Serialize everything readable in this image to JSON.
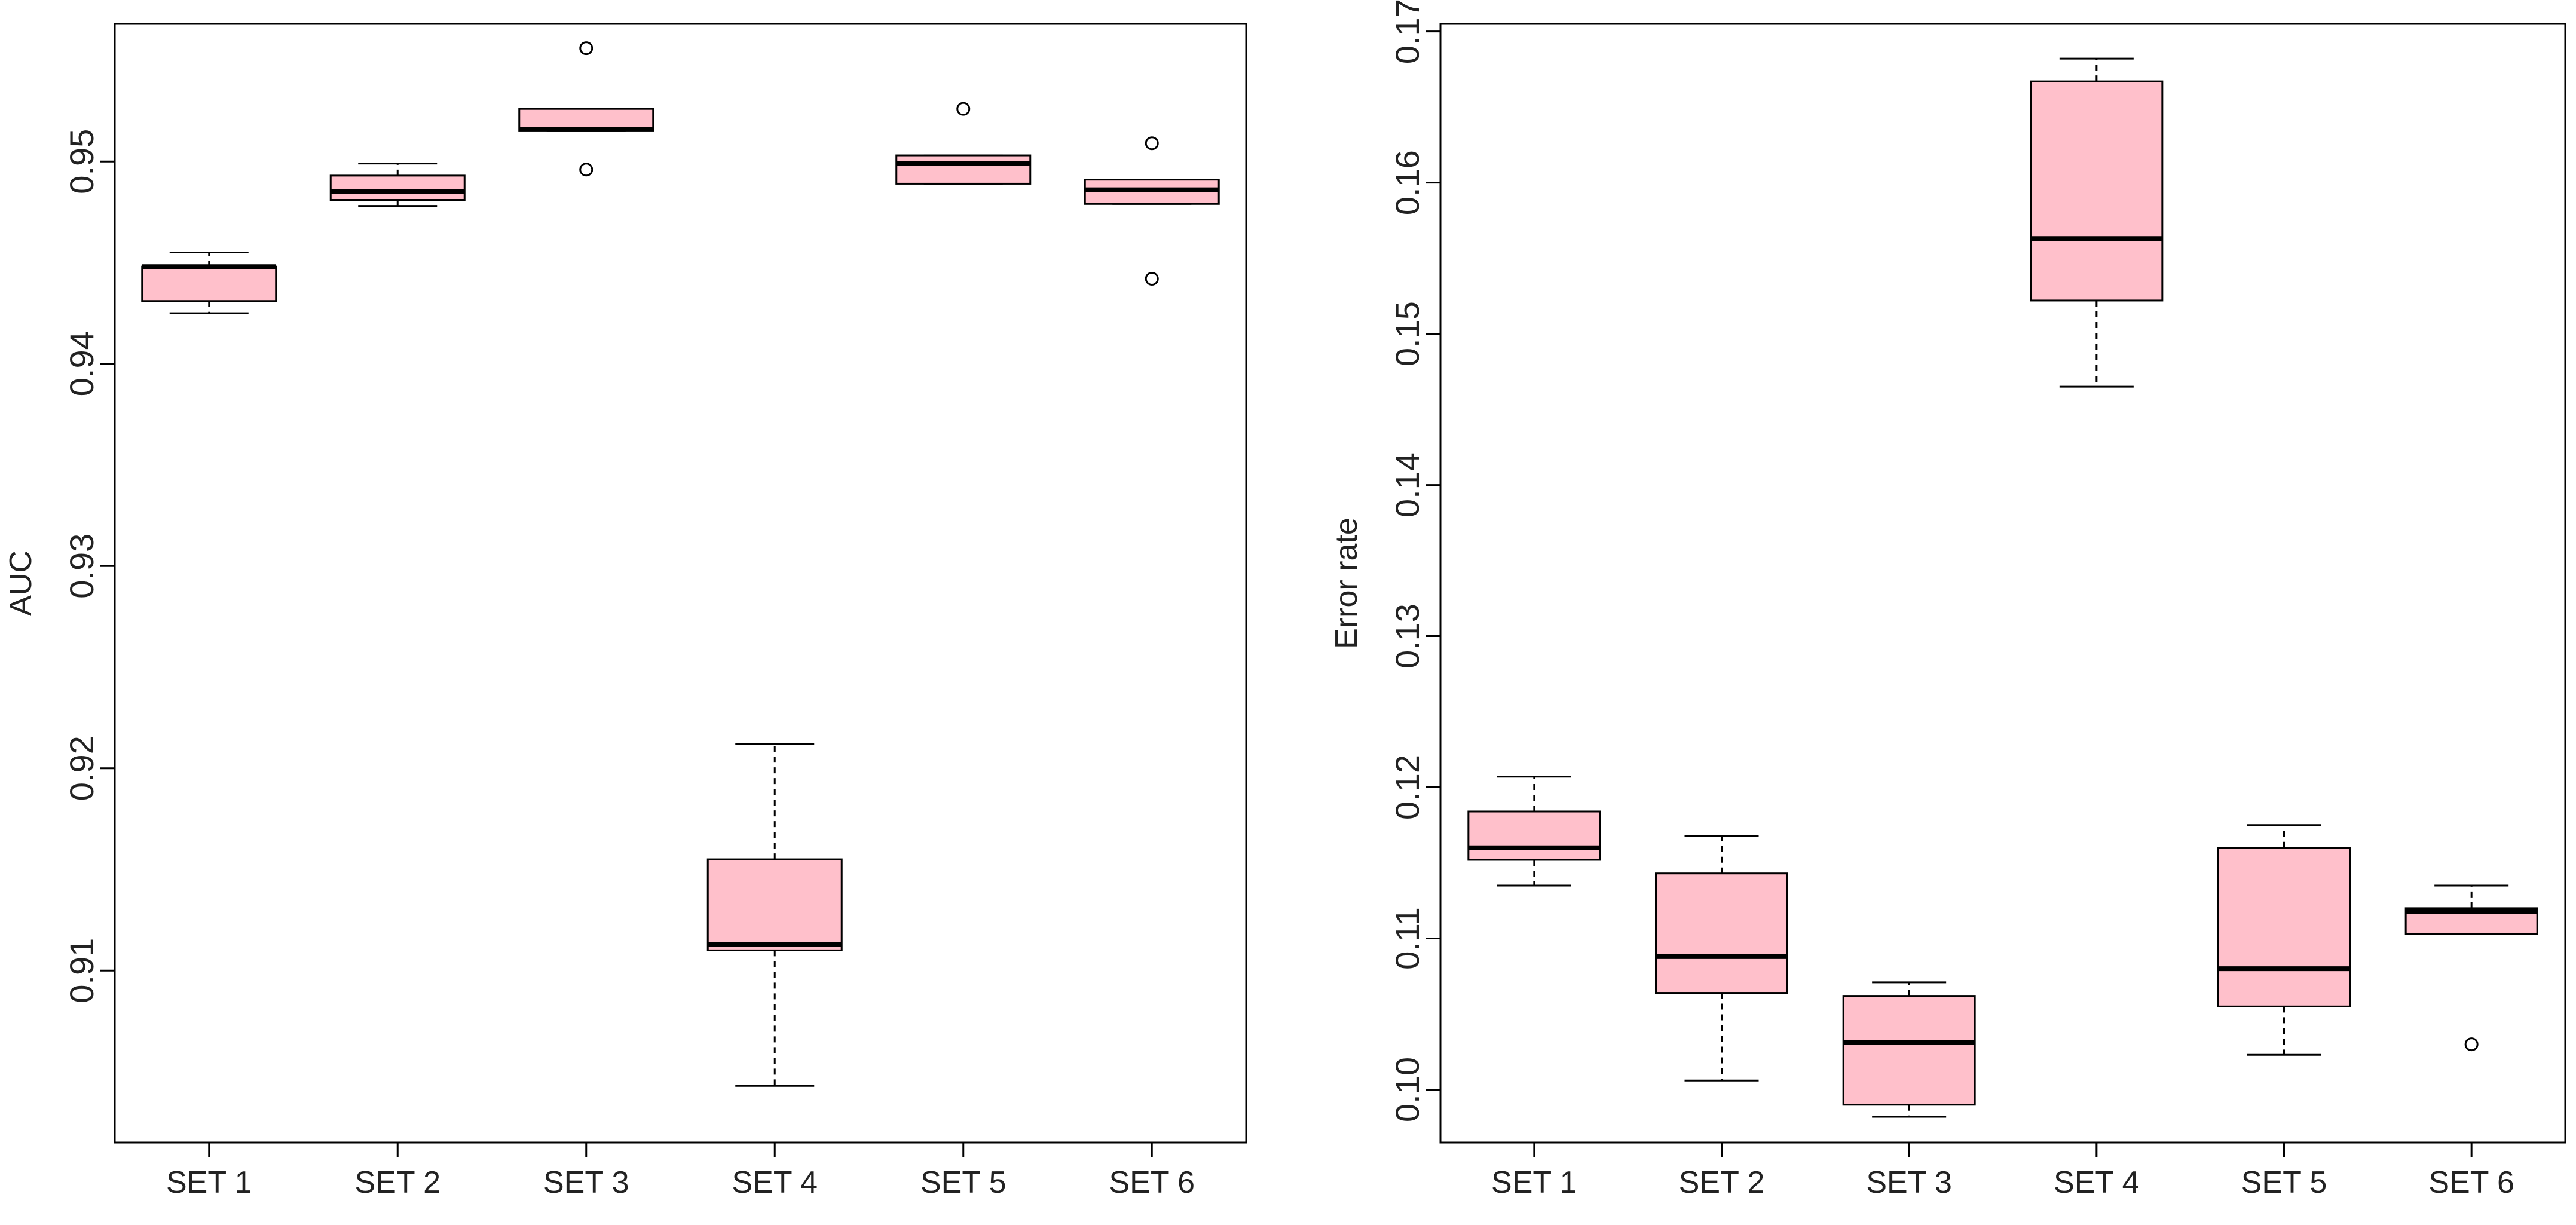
{
  "colors": {
    "box_fill": "#FFC0CB",
    "stroke": "#000000"
  },
  "chart_data": [
    {
      "type": "box",
      "title": "",
      "xlabel": "",
      "ylabel": "AUC",
      "ylim": [
        0.9015,
        0.9568
      ],
      "yticks": [
        0.91,
        0.92,
        0.93,
        0.94,
        0.95
      ],
      "ytick_labels": [
        "0.91",
        "0.92",
        "0.93",
        "0.94",
        "0.95"
      ],
      "categories": [
        "SET 1",
        "SET 2",
        "SET 3",
        "SET 4",
        "SET 5",
        "SET  6"
      ],
      "boxes": [
        {
          "whislo": 0.9425,
          "q1": 0.9431,
          "med": 0.9448,
          "q3": 0.9448,
          "whishi": 0.9455,
          "fliers": []
        },
        {
          "whislo": 0.9478,
          "q1": 0.9481,
          "med": 0.9485,
          "q3": 0.9493,
          "whishi": 0.9499,
          "fliers": []
        },
        {
          "whislo": 0.9515,
          "q1": 0.9515,
          "med": 0.9516,
          "q3": 0.9526,
          "whishi": 0.9526,
          "fliers": [
            0.9556,
            0.9496
          ]
        },
        {
          "whislo": 0.9043,
          "q1": 0.911,
          "med": 0.9113,
          "q3": 0.9155,
          "whishi": 0.9212,
          "fliers": []
        },
        {
          "whislo": 0.9489,
          "q1": 0.9489,
          "med": 0.9499,
          "q3": 0.9503,
          "whishi": 0.9503,
          "fliers": [
            0.9526
          ]
        },
        {
          "whislo": 0.9479,
          "q1": 0.9479,
          "med": 0.9486,
          "q3": 0.9491,
          "whishi": 0.9491,
          "fliers": [
            0.9509,
            0.9442
          ]
        }
      ]
    },
    {
      "type": "box",
      "title": "",
      "xlabel": "",
      "ylabel": "Error rate",
      "ylim": [
        0.0965,
        0.1705
      ],
      "yticks": [
        0.1,
        0.11,
        0.12,
        0.13,
        0.14,
        0.15,
        0.16,
        0.17
      ],
      "ytick_labels": [
        "0.10",
        "0.11",
        "0.12",
        "0.13",
        "0.14",
        "0.15",
        "0.16",
        "0.17"
      ],
      "categories": [
        "SET 1",
        "SET 2",
        "SET 3",
        "SET 4",
        "SET 5",
        "SET  6"
      ],
      "boxes": [
        {
          "whislo": 0.1135,
          "q1": 0.1152,
          "med": 0.116,
          "q3": 0.1184,
          "whishi": 0.1207,
          "fliers": []
        },
        {
          "whislo": 0.1006,
          "q1": 0.1064,
          "med": 0.1088,
          "q3": 0.1143,
          "whishi": 0.1168,
          "fliers": []
        },
        {
          "whislo": 0.0982,
          "q1": 0.099,
          "med": 0.1031,
          "q3": 0.1062,
          "whishi": 0.1071,
          "fliers": []
        },
        {
          "whislo": 0.1465,
          "q1": 0.1522,
          "med": 0.1563,
          "q3": 0.1667,
          "whishi": 0.1682,
          "fliers": []
        },
        {
          "whislo": 0.1023,
          "q1": 0.1055,
          "med": 0.108,
          "q3": 0.116,
          "whishi": 0.1175,
          "fliers": []
        },
        {
          "whislo": 0.1103,
          "q1": 0.1103,
          "med": 0.1118,
          "q3": 0.112,
          "whishi": 0.1135,
          "fliers": [
            0.103
          ]
        }
      ]
    }
  ]
}
